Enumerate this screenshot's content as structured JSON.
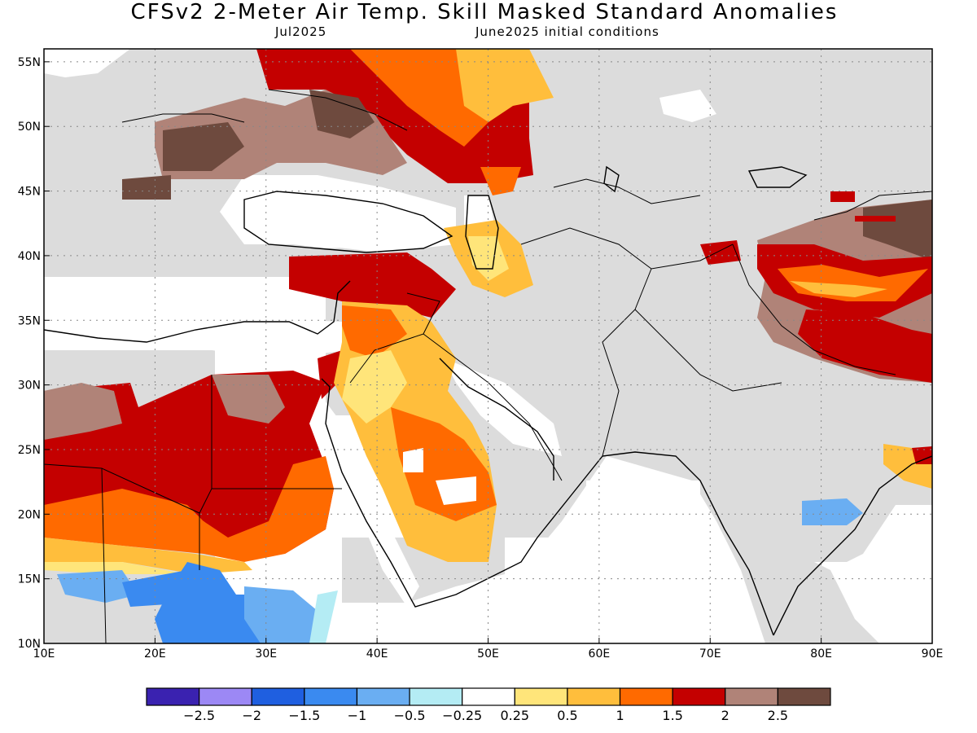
{
  "title": "CFSv2 2-Meter Air Temp. Skill Masked Standard Anomalies",
  "subtitle_left": "Jul2025",
  "subtitle_right": "June2025 initial conditions",
  "map": {
    "region": "Middle East, North Africa, South Asia",
    "lon_range": [
      10,
      90
    ],
    "lat_range": [
      10,
      56
    ],
    "masked_color": "#dcdcdc",
    "ocean_color": "#ffffff",
    "x_ticks": [
      "10E",
      "20E",
      "30E",
      "40E",
      "50E",
      "60E",
      "70E",
      "80E",
      "90E"
    ],
    "y_ticks": [
      "10N",
      "15N",
      "20N",
      "25N",
      "30N",
      "35N",
      "40N",
      "45N",
      "50N",
      "55N"
    ],
    "grid": "dotted"
  },
  "colorbar": {
    "colors": [
      "#3a22b0",
      "#9c88f5",
      "#1f5fe0",
      "#3a8af0",
      "#6aaef2",
      "#b4ecf4",
      "#ffffff",
      "#ffe57a",
      "#ffbe3c",
      "#ff6a00",
      "#c40000",
      "#b08378",
      "#6e4a3e"
    ],
    "labels": [
      "-2.5",
      "-2",
      "-1.5",
      "-1",
      "-0.5",
      "-0.25",
      "0.25",
      "0.5",
      "1",
      "1.5",
      "2",
      "2.5"
    ]
  }
}
